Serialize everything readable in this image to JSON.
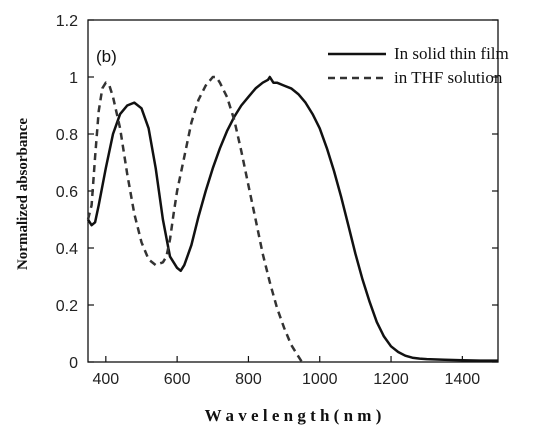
{
  "chart_data": {
    "type": "line",
    "panel_label": "(b)",
    "xlabel": "W a v e l e n g t h  ( n m )",
    "ylabel": "Normalized absorbance",
    "xlim": [
      350,
      1500
    ],
    "ylim": [
      0,
      1.2
    ],
    "x_ticks": [
      400,
      600,
      800,
      1000,
      1200,
      1400
    ],
    "y_ticks": [
      "0",
      "0.2",
      "0.4",
      "0.6",
      "0.8",
      "1",
      "1.2"
    ],
    "legend_position": "top-right",
    "series": [
      {
        "name": "In solid thin film",
        "style": "solid",
        "color": "#111111",
        "x": [
          350,
          360,
          370,
          380,
          400,
          420,
          440,
          460,
          480,
          500,
          520,
          540,
          560,
          580,
          600,
          610,
          620,
          640,
          660,
          680,
          700,
          720,
          740,
          760,
          780,
          800,
          820,
          840,
          855,
          860,
          870,
          880,
          900,
          920,
          940,
          960,
          980,
          1000,
          1020,
          1040,
          1060,
          1080,
          1100,
          1120,
          1140,
          1160,
          1180,
          1200,
          1220,
          1240,
          1260,
          1280,
          1300,
          1350,
          1400,
          1450,
          1500
        ],
        "y": [
          0.5,
          0.48,
          0.49,
          0.55,
          0.68,
          0.8,
          0.87,
          0.9,
          0.91,
          0.89,
          0.82,
          0.68,
          0.5,
          0.37,
          0.33,
          0.32,
          0.34,
          0.41,
          0.51,
          0.6,
          0.68,
          0.75,
          0.81,
          0.86,
          0.9,
          0.93,
          0.96,
          0.98,
          0.99,
          1.0,
          0.98,
          0.98,
          0.97,
          0.96,
          0.94,
          0.91,
          0.87,
          0.82,
          0.75,
          0.67,
          0.58,
          0.48,
          0.38,
          0.29,
          0.21,
          0.14,
          0.09,
          0.055,
          0.035,
          0.022,
          0.015,
          0.012,
          0.01,
          0.008,
          0.006,
          0.005,
          0.005
        ]
      },
      {
        "name": "in THF solution",
        "style": "dashed",
        "color": "#333333",
        "x": [
          350,
          360,
          370,
          380,
          390,
          400,
          410,
          420,
          440,
          460,
          480,
          500,
          520,
          540,
          560,
          570,
          580,
          590,
          600,
          620,
          640,
          660,
          680,
          700,
          710,
          720,
          740,
          760,
          780,
          800,
          820,
          840,
          860,
          880,
          900,
          920,
          940,
          950
        ],
        "y": [
          0.5,
          0.55,
          0.72,
          0.88,
          0.96,
          0.98,
          0.97,
          0.93,
          0.82,
          0.66,
          0.52,
          0.42,
          0.36,
          0.34,
          0.35,
          0.37,
          0.43,
          0.52,
          0.6,
          0.72,
          0.84,
          0.92,
          0.97,
          1.0,
          1.0,
          0.98,
          0.93,
          0.85,
          0.74,
          0.62,
          0.5,
          0.38,
          0.28,
          0.19,
          0.12,
          0.06,
          0.02,
          0.0
        ]
      }
    ]
  }
}
